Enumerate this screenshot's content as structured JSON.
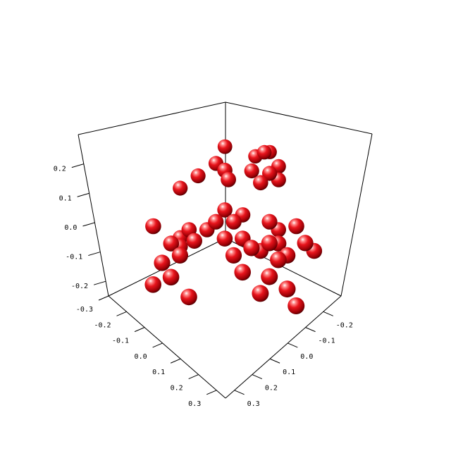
{
  "chart_data": {
    "type": "scatter",
    "projection": "3d",
    "title": "",
    "xlabel": "",
    "ylabel": "",
    "zlabel": "",
    "grid": false,
    "marker_color": "#e8141c",
    "x_axis": {
      "ticks": [
        -0.3,
        -0.2,
        -0.1,
        0.0,
        0.1,
        0.2,
        0.3
      ],
      "labels": [
        "-0.3",
        "-0.2",
        "-0.1",
        "0.0",
        "0.1",
        "0.2",
        "0.3"
      ],
      "range": [
        -0.3,
        0.35
      ]
    },
    "y_axis": {
      "ticks": [
        -0.2,
        -0.1,
        0.0,
        0.1,
        0.2,
        0.3
      ],
      "labels": [
        "-0.2",
        "-0.1",
        "0.0",
        "0.1",
        "0.2",
        "0.3"
      ],
      "range": [
        -0.3,
        0.35
      ]
    },
    "z_axis": {
      "ticks": [
        -0.2,
        -0.1,
        0.0,
        0.1,
        0.2
      ],
      "labels": [
        "-0.2",
        "-0.1",
        "0.0",
        "0.1",
        "0.2"
      ],
      "range": [
        -0.25,
        0.3
      ]
    },
    "points": [
      {
        "x": -0.05,
        "y": -0.05,
        "z": 0.3
      },
      {
        "x": -0.2,
        "y": 0.05,
        "z": 0.26
      },
      {
        "x": -0.17,
        "y": 0.05,
        "z": 0.27
      },
      {
        "x": -0.15,
        "y": 0.02,
        "z": 0.25
      },
      {
        "x": -0.2,
        "y": 0.1,
        "z": 0.22
      },
      {
        "x": -0.15,
        "y": 0.1,
        "z": 0.21
      },
      {
        "x": -0.1,
        "y": 0.05,
        "z": 0.22
      },
      {
        "x": -0.18,
        "y": 0.12,
        "z": 0.18
      },
      {
        "x": -0.1,
        "y": 0.1,
        "z": 0.19
      },
      {
        "x": 0.0,
        "y": 0.0,
        "z": 0.24
      },
      {
        "x": 0.0,
        "y": -0.05,
        "z": 0.25
      },
      {
        "x": 0.0,
        "y": 0.02,
        "z": 0.21
      },
      {
        "x": 0.05,
        "y": -0.1,
        "z": 0.2
      },
      {
        "x": 0.1,
        "y": -0.15,
        "z": 0.15
      },
      {
        "x": 0.1,
        "y": -0.15,
        "z": -0.05
      },
      {
        "x": 0.1,
        "y": -0.1,
        "z": 0.0
      },
      {
        "x": 0.12,
        "y": -0.05,
        "z": -0.02
      },
      {
        "x": 0.15,
        "y": -0.1,
        "z": -0.05
      },
      {
        "x": 0.2,
        "y": -0.1,
        "z": -0.02
      },
      {
        "x": 0.2,
        "y": -0.05,
        "z": -0.05
      },
      {
        "x": 0.25,
        "y": -0.1,
        "z": -0.08
      },
      {
        "x": 0.25,
        "y": -0.05,
        "z": -0.12
      },
      {
        "x": 0.3,
        "y": -0.1,
        "z": -0.15
      },
      {
        "x": 0.05,
        "y": -0.05,
        "z": 0.0
      },
      {
        "x": 0.0,
        "y": 0.0,
        "z": 0.08
      },
      {
        "x": 0.0,
        "y": 0.05,
        "z": 0.05
      },
      {
        "x": 0.05,
        "y": 0.0,
        "z": 0.05
      },
      {
        "x": -0.05,
        "y": 0.05,
        "z": 0.06
      },
      {
        "x": -0.1,
        "y": 0.15,
        "z": 0.05
      },
      {
        "x": -0.15,
        "y": 0.15,
        "z": 0.0
      },
      {
        "x": -0.1,
        "y": 0.2,
        "z": -0.02
      },
      {
        "x": -0.05,
        "y": 0.2,
        "z": 0.0
      },
      {
        "x": 0.0,
        "y": 0.1,
        "z": 0.0
      },
      {
        "x": 0.0,
        "y": 0.15,
        "z": -0.02
      },
      {
        "x": 0.05,
        "y": 0.05,
        "z": 0.0
      },
      {
        "x": 0.05,
        "y": 0.1,
        "z": -0.05
      },
      {
        "x": -0.05,
        "y": 0.15,
        "z": -0.05
      },
      {
        "x": -0.1,
        "y": 0.25,
        "z": -0.05
      },
      {
        "x": -0.05,
        "y": 0.25,
        "z": -0.05
      },
      {
        "x": -0.15,
        "y": 0.3,
        "z": 0.0
      },
      {
        "x": -0.2,
        "y": 0.3,
        "z": -0.05
      },
      {
        "x": -0.15,
        "y": 0.25,
        "z": 0.05
      },
      {
        "x": 0.05,
        "y": 0.15,
        "z": -0.1
      },
      {
        "x": 0.0,
        "y": 0.25,
        "z": -0.1
      },
      {
        "x": 0.05,
        "y": 0.25,
        "z": -0.15
      },
      {
        "x": -0.05,
        "y": 0.3,
        "z": -0.15
      },
      {
        "x": -0.05,
        "y": 0.35,
        "z": -0.2
      },
      {
        "x": 0.25,
        "y": -0.15,
        "z": 0.05
      },
      {
        "x": 0.2,
        "y": 0.0,
        "z": -0.2
      }
    ]
  }
}
